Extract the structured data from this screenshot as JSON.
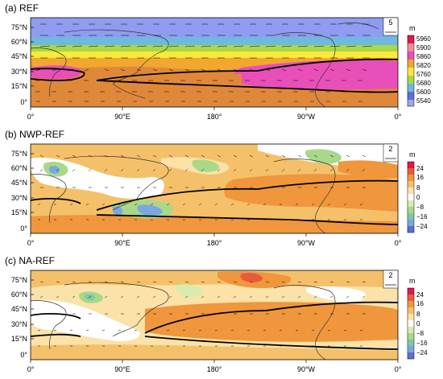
{
  "figure": {
    "panels": [
      {
        "id": "a",
        "title": "(a) REF",
        "ref_vector": "5",
        "colorbar": {
          "unit": "m",
          "labels": [
            "5960",
            "5900",
            "5860",
            "5820",
            "5760",
            "5680",
            "5600",
            "5540"
          ],
          "colors": [
            "#e8154f",
            "#f58a9e",
            "#e84fb8",
            "#f0a830",
            "#ffe83a",
            "#a8d848",
            "#6fb8e0",
            "#5a6fd8",
            "#9aa6f0"
          ]
        },
        "y_ticks": [
          "75°N",
          "60°N",
          "45°N",
          "30°N",
          "15°N",
          "0°"
        ],
        "x_ticks": [
          "0°",
          "90°E",
          "180°",
          "90°W",
          "0°"
        ]
      },
      {
        "id": "b",
        "title": "(b) NWP-REF",
        "ref_vector": "2",
        "colorbar": {
          "unit": "m",
          "labels": [
            "24",
            "16",
            "8",
            "0",
            "−8",
            "−16",
            "−24"
          ],
          "colors": [
            "#e8154f",
            "#e85a3a",
            "#f0963c",
            "#f5c06a",
            "#fae2a8",
            "#ffffff",
            "#d8ecb0",
            "#a8d888",
            "#7fc8a8",
            "#78a8e0",
            "#5a6fd8"
          ]
        },
        "y_ticks": [
          "75°N",
          "60°N",
          "45°N",
          "30°N",
          "15°N",
          "0°"
        ],
        "x_ticks": [
          "0°",
          "90°E",
          "180°",
          "90°W",
          "0°"
        ]
      },
      {
        "id": "c",
        "title": "(c) NA-REF",
        "ref_vector": "2",
        "colorbar": {
          "unit": "m",
          "labels": [
            "24",
            "16",
            "8",
            "0",
            "−8",
            "−16",
            "−24"
          ],
          "colors": [
            "#e8154f",
            "#e85a3a",
            "#f0963c",
            "#f5c06a",
            "#fae2a8",
            "#ffffff",
            "#d8ecb0",
            "#a8d888",
            "#7fc8a8",
            "#78a8e0",
            "#5a6fd8"
          ]
        },
        "y_ticks": [
          "75°N",
          "60°N",
          "45°N",
          "30°N",
          "15°N",
          "0°"
        ],
        "x_ticks": [
          "0°",
          "90°E",
          "180°",
          "90°W",
          "0°"
        ]
      }
    ]
  }
}
